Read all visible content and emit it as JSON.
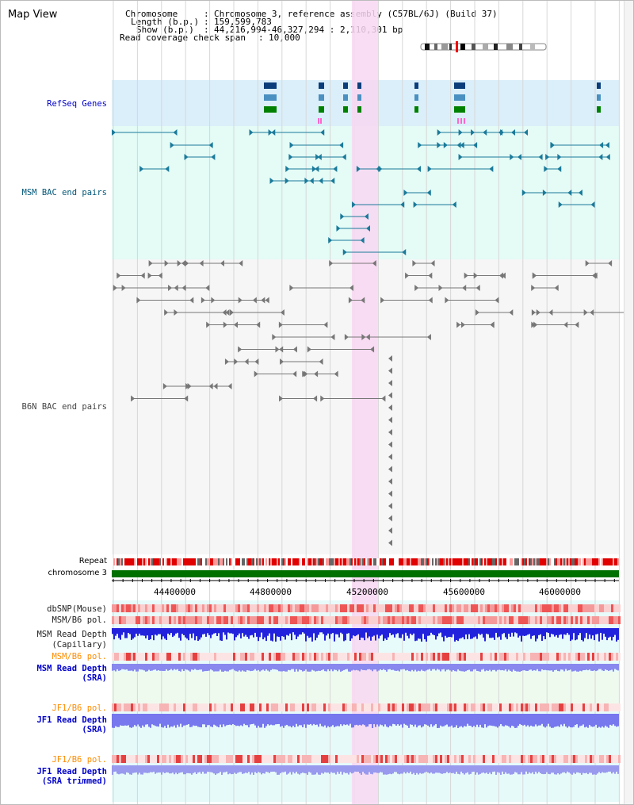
{
  "title": "Map View",
  "info": {
    "chromosome_key": "Chromosome",
    "chromosome_val": "Chromosome 3, reference assembly (C57BL/6J) (Build 37)",
    "length_key": "Length (b.p.)",
    "length_val": "159,599,783",
    "show_key": "Show (b.p.)",
    "show_val": "44,216,994-46,327,294 : 2,110,301 bp",
    "coverage_key": "Read coverage check span",
    "coverage_val": "10,000"
  },
  "tracks": {
    "refseq": "RefSeq Genes",
    "msm_bac": "MSM BAC end pairs",
    "b6n_bac": "B6N BAC end pairs",
    "repeat": "Repeat",
    "chromosome": "chromosome 3",
    "dbsnp": "dbSNP(Mouse)",
    "msm_pol1": "MSM/B6 pol.",
    "msm_depth_cap_1": "MSM Read Depth",
    "msm_depth_cap_2": "(Capillary)",
    "msm_pol2": "MSM/B6 pol.",
    "msm_depth_sra_1": "MSM Read Depth",
    "msm_depth_sra_2": "(SRA)",
    "jf1_pol1": "JF1/B6 pol.",
    "jf1_depth_sra_1": "JF1 Read Depth",
    "jf1_depth_sra_2": "(SRA)",
    "jf1_pol2": "JF1/B6 pol.",
    "jf1_depth_trim_1": "JF1 Read Depth",
    "jf1_depth_trim_2": "(SRA trimmed)"
  },
  "axis_ticks": [
    "44400000",
    "44800000",
    "45200000",
    "45600000",
    "46000000"
  ],
  "colors": {
    "label_blue": "#0000cc",
    "label_orange": "#ff8c00",
    "refseq_bg": "#dbeffa",
    "msm_bg": "#e4fbf6",
    "highlight": "#f8d7f2",
    "chromosome_bar": "#007000",
    "repeat_red": "#e00000"
  }
}
